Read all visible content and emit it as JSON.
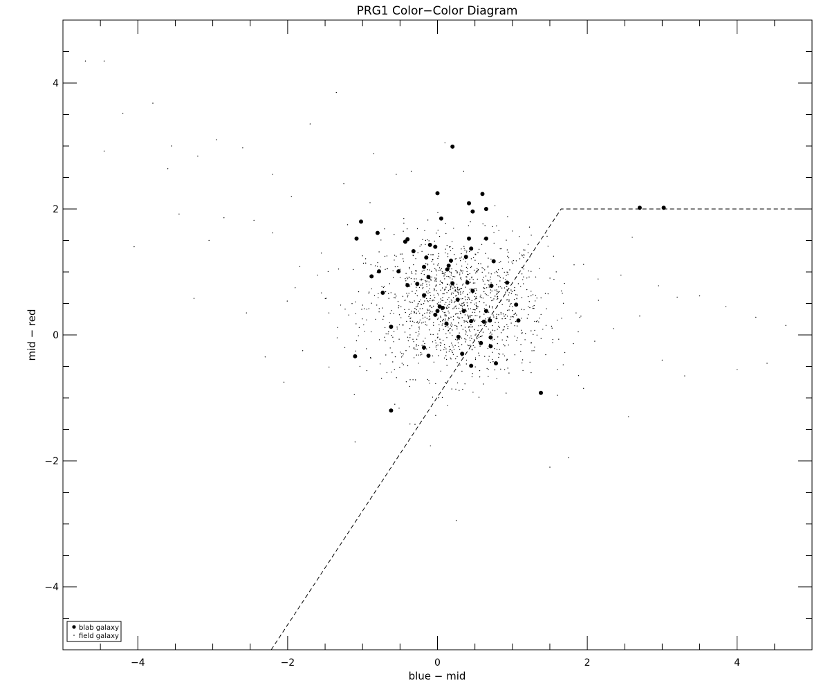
{
  "chart_data": {
    "type": "scatter",
    "title": "PRG1 Color−Color Diagram",
    "xlabel": "blue − mid",
    "ylabel": "mid − red",
    "xlim": [
      -5,
      5
    ],
    "ylim": [
      -5,
      5
    ],
    "xticks": [
      -4,
      -2,
      0,
      2,
      4
    ],
    "yticks": [
      -4,
      -2,
      0,
      2,
      4
    ],
    "xtick_labels": [
      "−4",
      "−2",
      "0",
      "2",
      "4"
    ],
    "ytick_labels": [
      "−4",
      "−2",
      "0",
      "2",
      "4"
    ],
    "grid": false,
    "legend_position": "bottom-left",
    "legend": [
      {
        "label": "blab galaxy",
        "marker": "filled-circle"
      },
      {
        "label": "field galaxy",
        "marker": "dot"
      }
    ],
    "selection_line": {
      "style": "dashed",
      "points": [
        [
          -2.22,
          -5.0
        ],
        [
          1.65,
          2.0
        ],
        [
          5.0,
          2.0
        ]
      ]
    },
    "series": [
      {
        "name": "blab galaxy",
        "points": [
          [
            0.2,
            2.99
          ],
          [
            0.0,
            2.25
          ],
          [
            0.6,
            2.24
          ],
          [
            0.42,
            2.09
          ],
          [
            0.65,
            2.0
          ],
          [
            0.47,
            1.96
          ],
          [
            0.05,
            1.85
          ],
          [
            -1.02,
            1.8
          ],
          [
            -0.8,
            1.62
          ],
          [
            -1.08,
            1.53
          ],
          [
            -0.4,
            1.52
          ],
          [
            0.42,
            1.53
          ],
          [
            0.65,
            1.53
          ],
          [
            -0.43,
            1.48
          ],
          [
            -0.1,
            1.43
          ],
          [
            -0.03,
            1.4
          ],
          [
            0.45,
            1.37
          ],
          [
            -0.32,
            1.33
          ],
          [
            -0.15,
            1.23
          ],
          [
            0.38,
            1.24
          ],
          [
            0.18,
            1.18
          ],
          [
            0.75,
            1.17
          ],
          [
            -0.18,
            1.08
          ],
          [
            0.15,
            1.1
          ],
          [
            0.13,
            1.04
          ],
          [
            -0.78,
            1.01
          ],
          [
            -0.52,
            1.01
          ],
          [
            -0.88,
            0.93
          ],
          [
            -0.12,
            0.92
          ],
          [
            0.2,
            0.82
          ],
          [
            0.4,
            0.83
          ],
          [
            0.93,
            0.83
          ],
          [
            -0.4,
            0.79
          ],
          [
            -0.27,
            0.81
          ],
          [
            0.72,
            0.78
          ],
          [
            -0.73,
            0.67
          ],
          [
            0.47,
            0.7
          ],
          [
            -0.18,
            0.63
          ],
          [
            0.27,
            0.56
          ],
          [
            1.05,
            0.48
          ],
          [
            0.03,
            0.45
          ],
          [
            0.07,
            0.43
          ],
          [
            -0.03,
            0.32
          ],
          [
            0.0,
            0.38
          ],
          [
            0.35,
            0.38
          ],
          [
            0.65,
            0.38
          ],
          [
            0.45,
            0.22
          ],
          [
            0.62,
            0.21
          ],
          [
            0.7,
            0.23
          ],
          [
            1.08,
            0.23
          ],
          [
            0.12,
            0.18
          ],
          [
            -0.62,
            0.13
          ],
          [
            0.28,
            -0.03
          ],
          [
            0.71,
            -0.04
          ],
          [
            0.58,
            -0.13
          ],
          [
            -0.18,
            -0.2
          ],
          [
            0.71,
            -0.18
          ],
          [
            0.33,
            -0.3
          ],
          [
            -1.1,
            -0.34
          ],
          [
            -0.12,
            -0.33
          ],
          [
            0.45,
            -0.49
          ],
          [
            0.78,
            -0.45
          ],
          [
            1.38,
            -0.92
          ],
          [
            -0.62,
            -1.2
          ],
          [
            2.7,
            2.02
          ],
          [
            3.02,
            2.02
          ]
        ]
      },
      {
        "name": "field galaxy",
        "points": [
          [
            -4.7,
            4.35
          ],
          [
            -4.45,
            4.35
          ],
          [
            -4.2,
            3.52
          ],
          [
            -3.8,
            3.68
          ],
          [
            -4.45,
            2.92
          ],
          [
            -3.55,
            3.0
          ],
          [
            -3.6,
            2.64
          ],
          [
            -3.2,
            2.84
          ],
          [
            -2.95,
            3.1
          ],
          [
            -2.6,
            2.97
          ],
          [
            -2.2,
            2.55
          ],
          [
            -1.95,
            2.2
          ],
          [
            -1.7,
            3.35
          ],
          [
            -3.45,
            1.92
          ],
          [
            -2.85,
            1.86
          ],
          [
            -2.45,
            1.82
          ],
          [
            -3.05,
            1.5
          ],
          [
            -2.2,
            1.62
          ],
          [
            -4.05,
            1.4
          ],
          [
            -3.25,
            0.58
          ],
          [
            -2.55,
            0.35
          ],
          [
            -2.3,
            -0.35
          ],
          [
            -2.05,
            -0.75
          ],
          [
            -1.8,
            -0.25
          ],
          [
            -1.35,
            3.85
          ],
          [
            -1.25,
            2.4
          ],
          [
            -0.85,
            2.88
          ],
          [
            -0.55,
            2.55
          ],
          [
            -0.35,
            2.6
          ],
          [
            1.0,
            1.65
          ],
          [
            1.15,
            1.35
          ],
          [
            1.55,
            1.25
          ],
          [
            1.95,
            1.12
          ],
          [
            2.45,
            0.95
          ],
          [
            2.95,
            0.78
          ],
          [
            3.2,
            0.6
          ],
          [
            3.5,
            0.62
          ],
          [
            3.85,
            0.45
          ],
          [
            4.25,
            0.28
          ],
          [
            4.65,
            0.15
          ],
          [
            3.0,
            -0.4
          ],
          [
            3.3,
            -0.65
          ],
          [
            4.0,
            -0.55
          ],
          [
            4.4,
            -0.45
          ],
          [
            2.55,
            -1.3
          ],
          [
            1.75,
            -1.95
          ],
          [
            1.5,
            -2.1
          ],
          [
            0.25,
            -2.95
          ],
          [
            -1.1,
            -1.7
          ],
          [
            -0.3,
            -1.42
          ],
          [
            1.25,
            -0.6
          ],
          [
            1.7,
            -0.28
          ],
          [
            2.1,
            -0.1
          ],
          [
            2.35,
            0.1
          ],
          [
            2.7,
            0.3
          ],
          [
            2.15,
            0.55
          ],
          [
            1.85,
            0.35
          ],
          [
            1.45,
            0.15
          ],
          [
            1.6,
            -0.55
          ],
          [
            1.95,
            -0.85
          ],
          [
            -1.6,
            0.95
          ],
          [
            -1.9,
            0.75
          ],
          [
            -1.45,
            0.35
          ],
          [
            -1.55,
            1.3
          ],
          [
            -1.2,
            1.75
          ],
          [
            -0.45,
            1.85
          ],
          [
            0.35,
            2.6
          ],
          [
            0.1,
            3.05
          ],
          [
            -0.9,
            2.1
          ],
          [
            2.6,
            1.55
          ]
        ]
      }
    ]
  }
}
